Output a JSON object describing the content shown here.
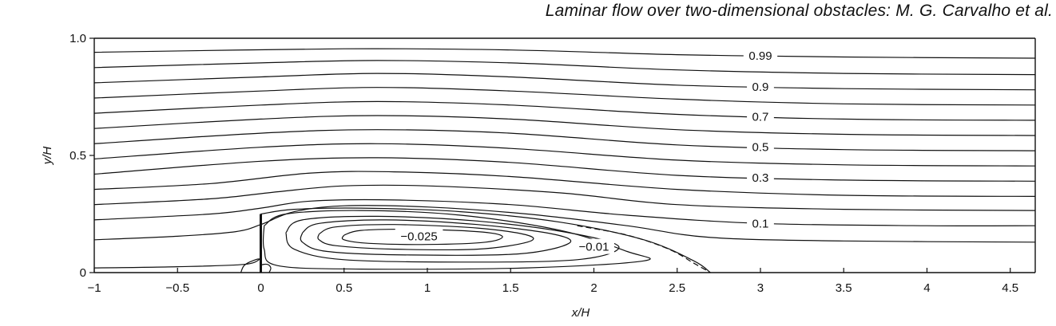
{
  "header": {
    "text": "Laminar flow over two-dimensional obstacles: M. G. Carvalho et al."
  },
  "colors": {
    "ink": "#111111",
    "background": "#ffffff"
  },
  "chart_data": {
    "type": "line",
    "title": "",
    "xlabel": "x/H",
    "ylabel": "y/H",
    "xlim": [
      -1,
      4.65
    ],
    "ylim": [
      0,
      1.0
    ],
    "grid": false,
    "legend": "none",
    "x_ticks": [
      -1,
      -0.5,
      0,
      0.5,
      1,
      1.5,
      2,
      2.5,
      3,
      3.5,
      4,
      4.5
    ],
    "x_tick_labels": [
      "−1",
      "−0.5",
      "0",
      "0.5",
      "1",
      "1.5",
      "2",
      "2.5",
      "3",
      "3.5",
      "4",
      "4.5"
    ],
    "y_ticks": [
      0,
      0.5,
      1.0
    ],
    "y_tick_labels": [
      "0",
      "0.5",
      "1.0"
    ],
    "obstacle": {
      "x": 0,
      "height": 0.25
    },
    "streamlines": [
      {
        "label": "0.99",
        "points": [
          [
            -1,
            0.94
          ],
          [
            0.5,
            0.955
          ],
          [
            1.5,
            0.95
          ],
          [
            2.5,
            0.93
          ],
          [
            3.5,
            0.92
          ],
          [
            4.65,
            0.915
          ]
        ]
      },
      {
        "label": "",
        "points": [
          [
            -1,
            0.875
          ],
          [
            0,
            0.895
          ],
          [
            0.7,
            0.905
          ],
          [
            1.5,
            0.895
          ],
          [
            2.5,
            0.865
          ],
          [
            3.5,
            0.85
          ],
          [
            4.65,
            0.845
          ]
        ]
      },
      {
        "label": "0.9",
        "points": [
          [
            -1,
            0.81
          ],
          [
            0,
            0.835
          ],
          [
            0.7,
            0.85
          ],
          [
            1.5,
            0.835
          ],
          [
            2.5,
            0.8
          ],
          [
            3.5,
            0.785
          ],
          [
            4.65,
            0.78
          ]
        ]
      },
      {
        "label": "",
        "points": [
          [
            -1,
            0.745
          ],
          [
            0,
            0.775
          ],
          [
            0.7,
            0.79
          ],
          [
            1.5,
            0.775
          ],
          [
            2.5,
            0.74
          ],
          [
            3.5,
            0.72
          ],
          [
            4.65,
            0.715
          ]
        ]
      },
      {
        "label": "0.7",
        "points": [
          [
            -1,
            0.68
          ],
          [
            0,
            0.715
          ],
          [
            0.7,
            0.73
          ],
          [
            1.5,
            0.715
          ],
          [
            2.5,
            0.675
          ],
          [
            3.5,
            0.655
          ],
          [
            4.65,
            0.65
          ]
        ]
      },
      {
        "label": "",
        "points": [
          [
            -1,
            0.615
          ],
          [
            0,
            0.655
          ],
          [
            0.7,
            0.67
          ],
          [
            1.5,
            0.655
          ],
          [
            2.5,
            0.61
          ],
          [
            3.5,
            0.59
          ],
          [
            4.65,
            0.585
          ]
        ]
      },
      {
        "label": "0.5",
        "points": [
          [
            -1,
            0.55
          ],
          [
            0,
            0.595
          ],
          [
            0.7,
            0.61
          ],
          [
            1.5,
            0.595
          ],
          [
            2.5,
            0.545
          ],
          [
            3.5,
            0.525
          ],
          [
            4.65,
            0.52
          ]
        ]
      },
      {
        "label": "",
        "points": [
          [
            -1,
            0.485
          ],
          [
            0,
            0.535
          ],
          [
            0.7,
            0.55
          ],
          [
            1.5,
            0.53
          ],
          [
            2.5,
            0.48
          ],
          [
            3.5,
            0.46
          ],
          [
            4.65,
            0.455
          ]
        ]
      },
      {
        "label": "0.3",
        "points": [
          [
            -1,
            0.42
          ],
          [
            0,
            0.475
          ],
          [
            0.7,
            0.49
          ],
          [
            1.5,
            0.47
          ],
          [
            2.5,
            0.415
          ],
          [
            3.5,
            0.395
          ],
          [
            4.65,
            0.39
          ]
        ]
      },
      {
        "label": "",
        "points": [
          [
            -1,
            0.355
          ],
          [
            -0.3,
            0.38
          ],
          [
            0.3,
            0.425
          ],
          [
            0.8,
            0.43
          ],
          [
            1.5,
            0.41
          ],
          [
            2.5,
            0.355
          ],
          [
            3.5,
            0.33
          ],
          [
            4.65,
            0.325
          ]
        ]
      },
      {
        "label": "",
        "points": [
          [
            -1,
            0.29
          ],
          [
            -0.3,
            0.315
          ],
          [
            0.1,
            0.345
          ],
          [
            0.5,
            0.37
          ],
          [
            1,
            0.37
          ],
          [
            1.8,
            0.34
          ],
          [
            2.5,
            0.29
          ],
          [
            3.5,
            0.27
          ],
          [
            4.65,
            0.265
          ]
        ]
      },
      {
        "label": "0.1",
        "points": [
          [
            -1,
            0.225
          ],
          [
            -0.3,
            0.25
          ],
          [
            0,
            0.275
          ],
          [
            0.3,
            0.305
          ],
          [
            0.8,
            0.31
          ],
          [
            1.5,
            0.29
          ],
          [
            2.2,
            0.245
          ],
          [
            3,
            0.21
          ],
          [
            4,
            0.2
          ],
          [
            4.65,
            0.2
          ]
        ]
      },
      {
        "label": "",
        "points": [
          [
            -1,
            0.14
          ],
          [
            -0.5,
            0.155
          ],
          [
            -0.15,
            0.175
          ],
          [
            0,
            0.205
          ],
          [
            0.2,
            0.26
          ],
          [
            0.5,
            0.285
          ],
          [
            1,
            0.28
          ],
          [
            1.6,
            0.25
          ],
          [
            2.2,
            0.2
          ],
          [
            2.7,
            0.15
          ],
          [
            3.5,
            0.135
          ],
          [
            4.65,
            0.13
          ]
        ]
      },
      {
        "label": "",
        "points": [
          [
            -1,
            0.02
          ],
          [
            -0.5,
            0.025
          ],
          [
            -0.1,
            0.035
          ],
          [
            0,
            0.06
          ]
        ]
      },
      {
        "label": "",
        "points": [
          [
            0,
            0.25
          ],
          [
            0.2,
            0.27
          ],
          [
            0.6,
            0.275
          ],
          [
            1.2,
            0.26
          ],
          [
            1.8,
            0.215
          ],
          [
            2.3,
            0.14
          ],
          [
            2.6,
            0.05
          ],
          [
            2.7,
            0.0
          ]
        ]
      }
    ],
    "recirculation_contours": [
      {
        "label": "",
        "points": [
          [
            0.02,
            0.2
          ],
          [
            0.15,
            0.25
          ],
          [
            0.6,
            0.265
          ],
          [
            1.2,
            0.245
          ],
          [
            1.8,
            0.18
          ],
          [
            2.2,
            0.09
          ],
          [
            2.3,
            0.05
          ],
          [
            1.6,
            0.02
          ],
          [
            0.6,
            0.015
          ],
          [
            0.1,
            0.03
          ],
          [
            0.02,
            0.1
          ],
          [
            0.02,
            0.2
          ]
        ]
      },
      {
        "label": "−0.01",
        "points": [
          [
            0.15,
            0.17
          ],
          [
            0.25,
            0.225
          ],
          [
            0.7,
            0.24
          ],
          [
            1.3,
            0.22
          ],
          [
            1.85,
            0.17
          ],
          [
            2.15,
            0.11
          ],
          [
            1.9,
            0.055
          ],
          [
            1.2,
            0.045
          ],
          [
            0.5,
            0.055
          ],
          [
            0.2,
            0.1
          ],
          [
            0.15,
            0.17
          ]
        ]
      },
      {
        "label": "",
        "points": [
          [
            0.25,
            0.17
          ],
          [
            0.35,
            0.21
          ],
          [
            0.75,
            0.225
          ],
          [
            1.3,
            0.205
          ],
          [
            1.75,
            0.165
          ],
          [
            1.85,
            0.125
          ],
          [
            1.55,
            0.08
          ],
          [
            0.9,
            0.075
          ],
          [
            0.4,
            0.09
          ],
          [
            0.25,
            0.13
          ],
          [
            0.25,
            0.17
          ]
        ]
      },
      {
        "label": "",
        "points": [
          [
            0.35,
            0.165
          ],
          [
            0.45,
            0.195
          ],
          [
            0.8,
            0.205
          ],
          [
            1.3,
            0.19
          ],
          [
            1.6,
            0.16
          ],
          [
            1.6,
            0.13
          ],
          [
            1.3,
            0.1
          ],
          [
            0.8,
            0.1
          ],
          [
            0.45,
            0.115
          ],
          [
            0.35,
            0.14
          ],
          [
            0.35,
            0.165
          ]
        ]
      },
      {
        "label": "−0.025",
        "points": [
          [
            0.5,
            0.16
          ],
          [
            0.6,
            0.18
          ],
          [
            0.9,
            0.185
          ],
          [
            1.3,
            0.175
          ],
          [
            1.45,
            0.155
          ],
          [
            1.35,
            0.13
          ],
          [
            1.0,
            0.12
          ],
          [
            0.65,
            0.125
          ],
          [
            0.5,
            0.14
          ],
          [
            0.5,
            0.16
          ]
        ]
      }
    ],
    "corner_eddies": [
      {
        "label": "",
        "points": [
          [
            -0.12,
            0.0
          ],
          [
            -0.1,
            0.03
          ],
          [
            -0.05,
            0.05
          ],
          [
            0,
            0.055
          ],
          [
            0,
            0.0
          ]
        ]
      },
      {
        "label": "",
        "points": [
          [
            0,
            0.0
          ],
          [
            0,
            0.03
          ],
          [
            0.04,
            0.035
          ],
          [
            0.06,
            0.02
          ],
          [
            0.05,
            0.0
          ]
        ]
      }
    ],
    "dashed_line": [
      [
        1.9,
        0.2
      ],
      [
        2.2,
        0.16
      ],
      [
        2.45,
        0.1
      ],
      [
        2.6,
        0.04
      ],
      [
        2.7,
        0.0
      ]
    ]
  }
}
